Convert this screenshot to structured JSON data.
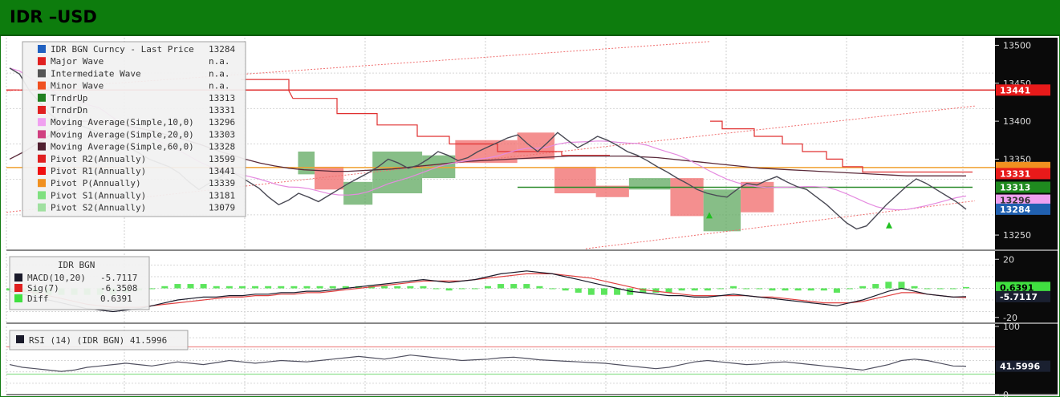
{
  "title": "IDR –USD",
  "colors": {
    "title_bg": "#0d7c0d",
    "price": "#4a4a55",
    "green_box": "#5fa85f",
    "red_box": "#f06a6a",
    "ma10": "#e58be0",
    "ma20": "#b0406a",
    "ma60": "#5a2a3a",
    "pivot_r1": "#e03030",
    "pivot_p": "#f0a030",
    "trend_up": "#2a8a2a",
    "macd": "#1a1a2a",
    "sig": "#e04040",
    "diff": "#40e040"
  },
  "chart_data": [
    {
      "type": "line",
      "title": "",
      "ylim": [
        13230,
        13510
      ],
      "y_ticks": [
        "13500",
        "13450",
        "13400",
        "13350",
        "13250"
      ],
      "legend": [
        {
          "label": "IDR BGN Curncy - Last Price",
          "value": "13284",
          "color": "#2060c0"
        },
        {
          "label": "Major Wave",
          "value": "n.a.",
          "color": "#e02020"
        },
        {
          "label": "Intermediate Wave",
          "value": "n.a.",
          "color": "#555555"
        },
        {
          "label": "Minor Wave",
          "value": "n.a.",
          "color": "#f05020"
        },
        {
          "label": "TrndrUp",
          "value": "13313",
          "color": "#208020"
        },
        {
          "label": "TrndrDn",
          "value": "13331",
          "color": "#e02020"
        },
        {
          "label": "Moving Average(Simple,10,0)",
          "value": "13296",
          "color": "#f0a0f0"
        },
        {
          "label": "Moving Average(Simple,20,0)",
          "value": "13303",
          "color": "#d04080"
        },
        {
          "label": "Moving Average(Simple,60,0)",
          "value": "13328",
          "color": "#502030"
        },
        {
          "label": "Pivot R2(Annually)",
          "value": "13599",
          "color": "#e02020"
        },
        {
          "label": "Pivot R1(Annually)",
          "value": "13441",
          "color": "#f01010"
        },
        {
          "label": "Pivot P(Annually)",
          "value": "13339",
          "color": "#f09020"
        },
        {
          "label": "Pivot S1(Annually)",
          "value": "13181",
          "color": "#80e080"
        },
        {
          "label": "Pivot S2(Annually)",
          "value": "13079",
          "color": "#a0e0a0"
        }
      ],
      "price_tags": [
        {
          "value": 13441,
          "label": "13441",
          "bg": "#e81a1a",
          "fg": "#ffffff"
        },
        {
          "value": 13339,
          "label": "",
          "bg": "#f09020",
          "fg": "#000000"
        },
        {
          "value": 13331,
          "label": "13331",
          "bg": "#e81a1a",
          "fg": "#ffffff"
        },
        {
          "value": 13313,
          "label": "13313",
          "bg": "#1f8a1f",
          "fg": "#ffffff"
        },
        {
          "value": 13296,
          "label": "13296",
          "bg": "#f0a0f0",
          "fg": "#333333"
        },
        {
          "value": 13284,
          "label": "13284",
          "bg": "#2060b0",
          "fg": "#ffffff"
        }
      ],
      "price_series": [
        13470,
        13462,
        13440,
        13425,
        13410,
        13400,
        13398,
        13395,
        13390,
        13385,
        13378,
        13370,
        13365,
        13358,
        13350,
        13345,
        13340,
        13332,
        13320,
        13310,
        13318,
        13325,
        13335,
        13328,
        13320,
        13312,
        13300,
        13290,
        13296,
        13305,
        13300,
        13294,
        13302,
        13310,
        13318,
        13325,
        13332,
        13340,
        13350,
        13345,
        13338,
        13342,
        13350,
        13360,
        13355,
        13348,
        13352,
        13360,
        13366,
        13372,
        13378,
        13382,
        13370,
        13360,
        13372,
        13385,
        13375,
        13365,
        13372,
        13380,
        13375,
        13368,
        13360,
        13355,
        13348,
        13340,
        13333,
        13325,
        13318,
        13310,
        13305,
        13302,
        13300,
        13310,
        13318,
        13316,
        13322,
        13327,
        13320,
        13314,
        13310,
        13300,
        13290,
        13278,
        13266,
        13258,
        13262,
        13276,
        13290,
        13302,
        13314,
        13324,
        13318,
        13310,
        13302,
        13294,
        13284
      ],
      "ma60_series": [
        13350,
        13360,
        13372,
        13385,
        13395,
        13400,
        13400,
        13398,
        13394,
        13390,
        13386,
        13380,
        13375,
        13369,
        13362,
        13356,
        13350,
        13345,
        13341,
        13338,
        13336,
        13335,
        13334,
        13334,
        13335,
        13336,
        13337,
        13339,
        13341,
        13343,
        13345,
        13347,
        13348,
        13349,
        13350,
        13351,
        13352,
        13353,
        13354,
        13354,
        13354,
        13354,
        13354,
        13353,
        13352,
        13350,
        13348,
        13346,
        13344,
        13342,
        13340,
        13338,
        13337,
        13336,
        13335,
        13334,
        13333,
        13332,
        13331,
        13330,
        13329,
        13328,
        13328,
        13328,
        13328,
        13328
      ],
      "boxes": [
        {
          "start": 0.11,
          "end": 0.13,
          "low": 13330,
          "high": 13360,
          "color": "green"
        },
        {
          "start": 0.13,
          "end": 0.165,
          "low": 13310,
          "high": 13340,
          "color": "red"
        },
        {
          "start": 0.165,
          "end": 0.2,
          "low": 13290,
          "high": 13320,
          "color": "green"
        },
        {
          "start": 0.2,
          "end": 0.26,
          "low": 13305,
          "high": 13360,
          "color": "green"
        },
        {
          "start": 0.26,
          "end": 0.3,
          "low": 13325,
          "high": 13355,
          "color": "green"
        },
        {
          "start": 0.3,
          "end": 0.375,
          "low": 13345,
          "high": 13375,
          "color": "red"
        },
        {
          "start": 0.375,
          "end": 0.42,
          "low": 13350,
          "high": 13385,
          "color": "red"
        },
        {
          "start": 0.42,
          "end": 0.47,
          "low": 13305,
          "high": 13340,
          "color": "red"
        },
        {
          "start": 0.47,
          "end": 0.51,
          "low": 13300,
          "high": 13315,
          "color": "red"
        },
        {
          "start": 0.51,
          "end": 0.56,
          "low": 13310,
          "high": 13325,
          "color": "green"
        },
        {
          "start": 0.56,
          "end": 0.6,
          "low": 13275,
          "high": 13325,
          "color": "red"
        },
        {
          "start": 0.6,
          "end": 0.645,
          "low": 13255,
          "high": 13310,
          "color": "green"
        },
        {
          "start": 0.645,
          "end": 0.685,
          "low": 13280,
          "high": 13320,
          "color": "red"
        }
      ]
    },
    {
      "type": "line",
      "title": "IDR BGN",
      "ylim": [
        -24,
        24
      ],
      "y_ticks": [
        "20",
        "-20"
      ],
      "legend": [
        {
          "label": "MACD(10,20)",
          "value": "-5.7117",
          "color": "#1a1a2a"
        },
        {
          "label": "Sig(7)",
          "value": "-6.3508",
          "color": "#e02020"
        },
        {
          "label": "Diff",
          "value": "0.6391",
          "color": "#40e040"
        }
      ],
      "price_tags": [
        {
          "value": 0.6391,
          "label": "0.6391",
          "bg": "#40e040",
          "fg": "#000000"
        },
        {
          "value": -5.7117,
          "label": "-5.7117",
          "bg": "#1a2030",
          "fg": "#ffffff"
        }
      ],
      "macd_series": [
        -2,
        -4,
        -6,
        -8,
        -10,
        -12,
        -14,
        -15,
        -16,
        -15,
        -14,
        -12,
        -10,
        -8,
        -7,
        -6,
        -6,
        -5,
        -5,
        -4,
        -4,
        -3,
        -3,
        -2,
        -2,
        -1,
        0,
        1,
        2,
        3,
        4,
        5,
        6,
        5,
        4,
        5,
        6,
        8,
        10,
        11,
        12,
        11,
        10,
        8,
        6,
        4,
        2,
        0,
        -2,
        -3,
        -4,
        -5,
        -5,
        -6,
        -6,
        -5,
        -4,
        -5,
        -6,
        -7,
        -8,
        -9,
        -10,
        -11,
        -12,
        -10,
        -8,
        -5,
        -2,
        0,
        -2,
        -4,
        -5,
        -6,
        -5.7
      ],
      "sig_series": [
        -1,
        -2,
        -3,
        -5,
        -7,
        -9,
        -11,
        -12,
        -13,
        -13,
        -13,
        -12,
        -11,
        -10,
        -9,
        -8,
        -7,
        -6,
        -6,
        -5,
        -5,
        -4,
        -4,
        -3,
        -3,
        -2,
        -1,
        0,
        1,
        2,
        3,
        4,
        5,
        5,
        5,
        5,
        6,
        7,
        8,
        9,
        10,
        10,
        10,
        9,
        8,
        7,
        5,
        3,
        1,
        -1,
        -2,
        -3,
        -4,
        -5,
        -5,
        -5,
        -5,
        -5,
        -6,
        -6,
        -7,
        -8,
        -9,
        -10,
        -10,
        -10,
        -9,
        -7,
        -5,
        -3,
        -3,
        -4,
        -5,
        -6,
        -6.35
      ],
      "diff_series": [
        -1,
        -2,
        -3,
        -3,
        -3,
        -3,
        -3,
        -3,
        -3,
        -2,
        -1,
        0,
        1,
        2,
        2,
        2,
        1,
        1,
        1,
        1,
        1,
        1,
        1,
        1,
        1,
        1,
        1,
        1,
        1,
        1,
        1,
        1,
        1,
        0,
        -1,
        0,
        0,
        1,
        2,
        2,
        2,
        1,
        0,
        -1,
        -2,
        -3,
        -3,
        -3,
        -3,
        -2,
        -2,
        -2,
        -1,
        -1,
        -1,
        0,
        1,
        0,
        0,
        -1,
        -1,
        -1,
        -1,
        -1,
        -2,
        0,
        1,
        2,
        3,
        3,
        1,
        0,
        0,
        0,
        0.6
      ]
    },
    {
      "type": "line",
      "title": "",
      "ylim": [
        0,
        100
      ],
      "y_ticks": [
        "100",
        "0"
      ],
      "legend": [
        {
          "label": "RSI (14) (IDR BGN)",
          "value": "41.5996",
          "color": "#1a1a2a"
        }
      ],
      "price_tags": [
        {
          "value": 41.5996,
          "label": "41.5996",
          "bg": "#1a2030",
          "fg": "#ffffff"
        }
      ],
      "levels": [
        70,
        30
      ],
      "rsi_series": [
        44,
        40,
        38,
        36,
        34,
        36,
        40,
        42,
        44,
        46,
        44,
        42,
        45,
        48,
        46,
        44,
        47,
        50,
        48,
        46,
        48,
        50,
        49,
        48,
        50,
        52,
        54,
        56,
        54,
        52,
        55,
        58,
        56,
        54,
        52,
        50,
        51,
        52,
        54,
        55,
        53,
        51,
        50,
        49,
        48,
        47,
        46,
        44,
        42,
        40,
        38,
        40,
        44,
        48,
        50,
        48,
        46,
        44,
        45,
        47,
        48,
        46,
        44,
        42,
        40,
        38,
        36,
        40,
        44,
        50,
        52,
        50,
        46,
        42,
        41.6
      ]
    }
  ]
}
